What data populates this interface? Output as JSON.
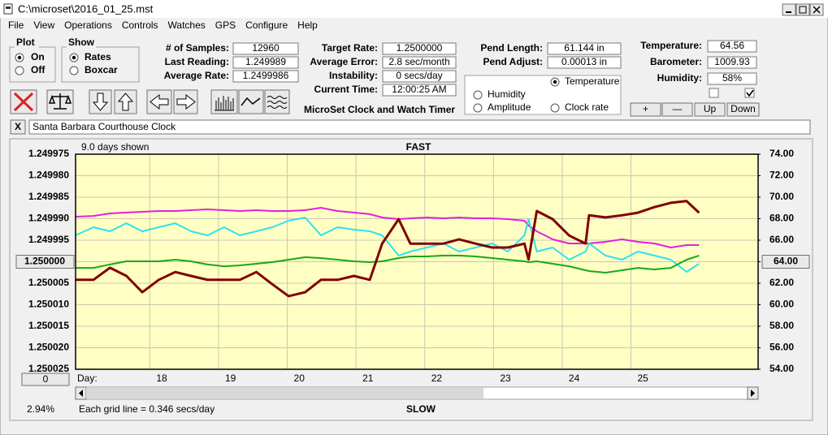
{
  "window": {
    "title": "C:\\microset\\2016_01_25.mst"
  },
  "menu": [
    "File",
    "View",
    "Operations",
    "Controls",
    "Watches",
    "GPS",
    "Configure",
    "Help"
  ],
  "plot_group": {
    "title": "Plot",
    "options": [
      "On",
      "Off"
    ],
    "selected": 0
  },
  "show_group": {
    "title": "Show",
    "options": [
      "Rates",
      "Boxcar"
    ],
    "selected": 0
  },
  "fields": [
    {
      "label": "# of Samples:",
      "value": "12960"
    },
    {
      "label": "Last Reading:",
      "value": "1.249989"
    },
    {
      "label": "Average Rate:",
      "value": "1.2499986"
    },
    {
      "label": "Target Rate:",
      "value": "1.2500000"
    },
    {
      "label": "Average Error:",
      "value": "2.8 sec/month"
    },
    {
      "label": "Instability:",
      "value": "0 secs/day"
    },
    {
      "label": "Current Time:",
      "value": "12:00:25 AM"
    },
    {
      "label": "Pend Length:",
      "value": "61.144 in"
    },
    {
      "label": "Pend Adjust:",
      "value": "0.00013 in"
    },
    {
      "label": "Temperature:",
      "value": "64.56"
    },
    {
      "label": "Barometer:",
      "value": "1009.93"
    },
    {
      "label": "Humidity:",
      "value": "58%"
    }
  ],
  "app_title": "MicroSet Clock and Watch Timer",
  "adjust_buttons": [
    "+",
    "—",
    "Up",
    "Down"
  ],
  "close_label": "X",
  "clock_name": "Santa Barbara Courthouse Clock",
  "zoom_button": "0",
  "zoom_percent": "2.94%",
  "chart_data": {
    "type": "line",
    "days_shown": "9.0 days shown",
    "top_label": "FAST",
    "bottom_label": "SLOW",
    "x_label": "Day:",
    "footnote": "Each grid line = 0.346 secs/day",
    "grid": true,
    "legend_selected": 3,
    "xlim": [
      16.92,
      26.85
    ],
    "xticks": [
      18,
      19,
      20,
      21,
      22,
      23,
      24,
      25
    ],
    "ylim": [
      1.250025,
      1.249975
    ],
    "yticks": [
      1.249975,
      {
        "value": 1.24998,
        "label": "1.249980"
      },
      1.249985,
      {
        "value": 1.24999,
        "label": "1.249990"
      },
      1.249995,
      {
        "value": 1.25,
        "label": "1.250000"
      },
      1.250005,
      {
        "value": 1.25001,
        "label": "1.250010"
      },
      1.250015,
      {
        "value": 1.25002,
        "label": "1.250020"
      },
      1.250025
    ],
    "y2lim": [
      54,
      74
    ],
    "y2ticks": [
      {
        "value": 54,
        "label": "54.00"
      },
      {
        "value": 56,
        "label": "56.00"
      },
      {
        "value": 58,
        "label": "58.00"
      },
      {
        "value": 60,
        "label": "60.00"
      },
      {
        "value": 62,
        "label": "62.00"
      },
      {
        "value": 64,
        "label": "64.00"
      },
      {
        "value": 66,
        "label": "66.00"
      },
      {
        "value": 68,
        "label": "68.00"
      },
      {
        "value": 70,
        "label": "70.00"
      },
      {
        "value": 72,
        "label": "72.00"
      },
      {
        "value": 74,
        "label": "74.00"
      }
    ],
    "x": [
      16.92,
      17.18,
      17.42,
      17.66,
      17.89,
      18.13,
      18.37,
      18.6,
      18.84,
      19.08,
      19.31,
      19.55,
      19.78,
      20.02,
      20.26,
      20.49,
      20.73,
      20.97,
      21.2,
      21.38,
      21.62,
      21.79,
      22.03,
      22.27,
      22.5,
      22.74,
      22.98,
      23.21,
      23.45,
      23.51,
      23.63,
      23.86,
      24.1,
      24.34,
      24.39,
      24.63,
      24.87,
      25.1,
      25.34,
      25.58,
      25.81,
      25.99
    ],
    "series": [
      {
        "name": "Clock rate",
        "color": "#800000",
        "values": [
          1.2500042,
          1.2500042,
          1.2500014,
          1.2500033,
          1.2500071,
          1.2500042,
          1.2500024,
          1.2500033,
          1.2500042,
          1.2500042,
          1.2500042,
          1.2500024,
          1.2500052,
          1.250008,
          1.2500071,
          1.2500042,
          1.2500042,
          1.2500033,
          1.2500042,
          1.2499958,
          1.2499901,
          1.2499958,
          1.2499958,
          1.2499958,
          1.2499948,
          1.2499958,
          1.2499967,
          1.2499967,
          1.2499958,
          1.2499995,
          1.2499882,
          1.2499901,
          1.2499939,
          1.2499958,
          1.2499892,
          1.2499897,
          1.2499892,
          1.2499886,
          1.2499873,
          1.2499863,
          1.2499859,
          1.2499886
        ]
      },
      {
        "name": "Humidity",
        "color": "#e020e0",
        "axis": "y2",
        "values": [
          68.19,
          68.26,
          68.49,
          68.57,
          68.64,
          68.72,
          68.72,
          68.79,
          68.87,
          68.79,
          68.72,
          68.79,
          68.72,
          68.72,
          68.79,
          69.02,
          68.72,
          68.57,
          68.42,
          68.11,
          67.96,
          68.04,
          68.11,
          68.04,
          68.11,
          68.04,
          68.04,
          67.96,
          67.81,
          67.36,
          66.83,
          66.08,
          65.7,
          65.7,
          65.7,
          65.85,
          66.08,
          65.85,
          65.7,
          65.32,
          65.55,
          65.55
        ]
      },
      {
        "name": "Amplitude",
        "color": "#30e0f0",
        "axis": "y2",
        "values": [
          66.45,
          67.21,
          66.83,
          67.58,
          66.83,
          67.21,
          67.58,
          66.83,
          66.45,
          67.21,
          66.45,
          66.83,
          67.21,
          67.81,
          68.11,
          66.45,
          67.21,
          66.98,
          66.83,
          66.45,
          64.57,
          64.94,
          65.32,
          65.7,
          64.94,
          65.32,
          65.7,
          64.94,
          66.45,
          67.96,
          64.94,
          65.32,
          64.19,
          64.94,
          65.7,
          64.57,
          64.19,
          64.94,
          64.57,
          64.19,
          63.06,
          63.81
        ]
      },
      {
        "name": "Temperature",
        "color": "#18a818",
        "axis": "y2",
        "values": [
          63.43,
          63.43,
          63.74,
          64.04,
          64.04,
          64.04,
          64.19,
          64.04,
          63.74,
          63.58,
          63.66,
          63.81,
          63.96,
          64.19,
          64.42,
          64.34,
          64.19,
          64.04,
          63.96,
          64.04,
          64.34,
          64.49,
          64.49,
          64.57,
          64.57,
          64.49,
          64.34,
          64.19,
          64.04,
          63.96,
          64.04,
          63.81,
          63.58,
          63.21,
          63.13,
          62.98,
          63.21,
          63.43,
          63.28,
          63.43,
          64.19,
          64.57
        ]
      }
    ]
  }
}
